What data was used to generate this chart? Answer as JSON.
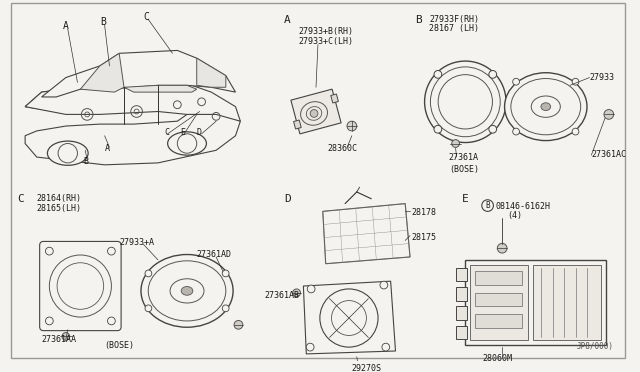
{
  "background_color": "#f0eeea",
  "border_color": "#aaaaaa",
  "text_color": "#1a1a1a",
  "diagram_code": "JP8/000)",
  "car_labels_top": [
    "A",
    "B",
    "C"
  ],
  "car_labels_bottom": [
    "C",
    "E",
    "D",
    "A",
    "B"
  ],
  "section_A_parts": [
    "27933+B(RH)",
    "27933+C(LH)",
    "28360C"
  ],
  "section_B_parts": [
    "27933F(RH)",
    "28167 (LH)",
    "27933",
    "27361A",
    "27361AC",
    "(BOSE)"
  ],
  "section_C_parts": [
    "28164(RH)",
    "28165(LH)",
    "27933+A",
    "27361AD",
    "27361AA",
    "(BOSE)"
  ],
  "section_D_parts": [
    "28178",
    "28175",
    "27361AB",
    "29270S"
  ],
  "section_E_parts": [
    "08146-6162H",
    "(4)",
    "28060M"
  ],
  "fs_small": 6.0,
  "fs_label": 7.5
}
